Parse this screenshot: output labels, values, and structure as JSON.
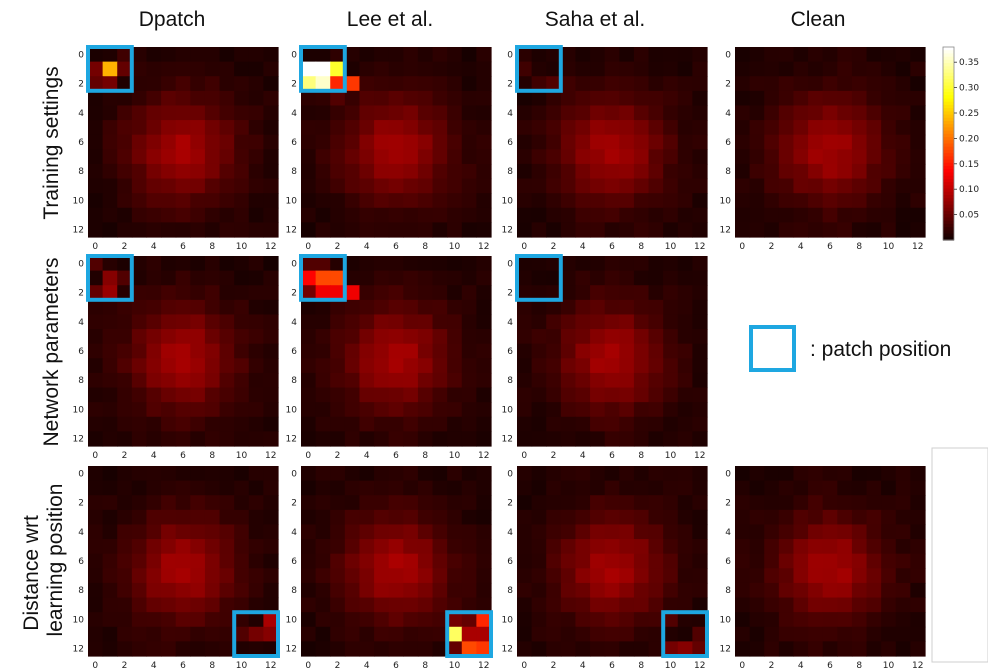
{
  "figure": {
    "column_titles": [
      "Dpatch",
      "Lee et al.",
      "Saha et al.",
      "Clean"
    ],
    "row_labels": [
      [
        "Training settings"
      ],
      [
        "Network parameters"
      ],
      [
        "Distance wrt",
        "learning position"
      ]
    ],
    "legend_label": ": patch position"
  },
  "chart_data": {
    "type": "heatmap",
    "grid_size": 13,
    "axis_ticks": [
      0,
      2,
      4,
      6,
      8,
      10,
      12
    ],
    "colormap": "hot",
    "colorbar": {
      "ticks": [
        0.05,
        0.1,
        0.15,
        0.2,
        0.25,
        0.3,
        0.35
      ],
      "range": [
        0.0,
        0.38
      ]
    },
    "background_blob": {
      "center": [
        6,
        6.5
      ],
      "spread": 2.6,
      "peak": 0.075
    },
    "patch_box_color": "#1ea7e1",
    "panels": [
      {
        "row": 0,
        "col": 0,
        "method": "Dpatch",
        "setting": "Training settings",
        "patch": [
          0,
          2
        ],
        "hot_cells": [
          {
            "x": 1,
            "y": 1,
            "v": 0.24
          },
          {
            "x": 0,
            "y": 1,
            "v": 0.06
          },
          {
            "x": 2,
            "y": 1,
            "v": 0.05
          },
          {
            "x": 1,
            "y": 2,
            "v": 0.06
          },
          {
            "x": 0,
            "y": 2,
            "v": 0.05
          },
          {
            "x": 2,
            "y": 0,
            "v": 0.03
          }
        ]
      },
      {
        "row": 0,
        "col": 1,
        "method": "Lee et al.",
        "setting": "Training settings",
        "patch": [
          0,
          2
        ],
        "hot_cells": [
          {
            "x": 0,
            "y": 0,
            "v": 0.01
          },
          {
            "x": 1,
            "y": 0,
            "v": 0.01
          },
          {
            "x": 2,
            "y": 0,
            "v": 0.02
          },
          {
            "x": 0,
            "y": 1,
            "v": 0.38
          },
          {
            "x": 1,
            "y": 1,
            "v": 0.38
          },
          {
            "x": 2,
            "y": 1,
            "v": 0.3
          },
          {
            "x": 0,
            "y": 2,
            "v": 0.33
          },
          {
            "x": 1,
            "y": 2,
            "v": 0.36
          },
          {
            "x": 2,
            "y": 2,
            "v": 0.16
          },
          {
            "x": 3,
            "y": 2,
            "v": 0.17
          },
          {
            "x": 2,
            "y": 3,
            "v": 0.04
          }
        ]
      },
      {
        "row": 0,
        "col": 2,
        "method": "Saha et al.",
        "setting": "Training settings",
        "patch": [
          0,
          2
        ],
        "hot_cells": [
          {
            "x": 0,
            "y": 1,
            "v": 0.03
          },
          {
            "x": 1,
            "y": 2,
            "v": 0.03
          },
          {
            "x": 2,
            "y": 2,
            "v": 0.04
          },
          {
            "x": 3,
            "y": 2,
            "v": 0.03
          }
        ]
      },
      {
        "row": 0,
        "col": 3,
        "method": "Clean",
        "setting": "Training settings",
        "patch": null,
        "hot_cells": []
      },
      {
        "row": 1,
        "col": 0,
        "method": "Dpatch",
        "setting": "Network parameters",
        "patch": [
          0,
          2
        ],
        "hot_cells": [
          {
            "x": 0,
            "y": 0,
            "v": 0.04
          },
          {
            "x": 1,
            "y": 1,
            "v": 0.07
          },
          {
            "x": 1,
            "y": 2,
            "v": 0.08
          },
          {
            "x": 2,
            "y": 1,
            "v": 0.04
          },
          {
            "x": 0,
            "y": 2,
            "v": 0.05
          }
        ]
      },
      {
        "row": 1,
        "col": 1,
        "method": "Lee et al.",
        "setting": "Network parameters",
        "patch": [
          0,
          2
        ],
        "hot_cells": [
          {
            "x": 0,
            "y": 1,
            "v": 0.14
          },
          {
            "x": 1,
            "y": 1,
            "v": 0.18
          },
          {
            "x": 2,
            "y": 1,
            "v": 0.18
          },
          {
            "x": 0,
            "y": 2,
            "v": 0.06
          },
          {
            "x": 1,
            "y": 2,
            "v": 0.13
          },
          {
            "x": 2,
            "y": 2,
            "v": 0.13
          },
          {
            "x": 3,
            "y": 2,
            "v": 0.13
          },
          {
            "x": 0,
            "y": 0,
            "v": 0.04
          },
          {
            "x": 1,
            "y": 0,
            "v": 0.04
          }
        ]
      },
      {
        "row": 1,
        "col": 2,
        "method": "Saha et al.",
        "setting": "Network parameters",
        "patch": [
          0,
          2
        ],
        "hot_cells": []
      },
      {
        "row": 2,
        "col": 0,
        "method": "Dpatch",
        "setting": "Distance wrt learning position",
        "patch": [
          10,
          12
        ],
        "hot_cells": [
          {
            "x": 12,
            "y": 10,
            "v": 0.09
          },
          {
            "x": 11,
            "y": 11,
            "v": 0.06
          },
          {
            "x": 12,
            "y": 11,
            "v": 0.07
          },
          {
            "x": 10,
            "y": 11,
            "v": 0.04
          }
        ]
      },
      {
        "row": 2,
        "col": 1,
        "method": "Lee et al.",
        "setting": "Distance wrt learning position",
        "patch": [
          10,
          12
        ],
        "hot_cells": [
          {
            "x": 10,
            "y": 10,
            "v": 0.06
          },
          {
            "x": 11,
            "y": 10,
            "v": 0.05
          },
          {
            "x": 12,
            "y": 10,
            "v": 0.16
          },
          {
            "x": 10,
            "y": 11,
            "v": 0.32
          },
          {
            "x": 11,
            "y": 11,
            "v": 0.09
          },
          {
            "x": 12,
            "y": 11,
            "v": 0.09
          },
          {
            "x": 10,
            "y": 12,
            "v": 0.05
          },
          {
            "x": 11,
            "y": 12,
            "v": 0.18
          },
          {
            "x": 12,
            "y": 12,
            "v": 0.17
          }
        ]
      },
      {
        "row": 2,
        "col": 2,
        "method": "Saha et al.",
        "setting": "Distance wrt learning position",
        "patch": [
          10,
          12
        ],
        "hot_cells": [
          {
            "x": 10,
            "y": 10,
            "v": 0.04
          },
          {
            "x": 11,
            "y": 11,
            "v": 0.01
          },
          {
            "x": 12,
            "y": 11,
            "v": 0.04
          },
          {
            "x": 10,
            "y": 12,
            "v": 0.06
          },
          {
            "x": 11,
            "y": 12,
            "v": 0.07
          },
          {
            "x": 12,
            "y": 12,
            "v": 0.05
          }
        ]
      },
      {
        "row": 2,
        "col": 3,
        "method": "Clean",
        "setting": "Distance wrt learning position",
        "patch": null,
        "hot_cells": []
      }
    ]
  }
}
